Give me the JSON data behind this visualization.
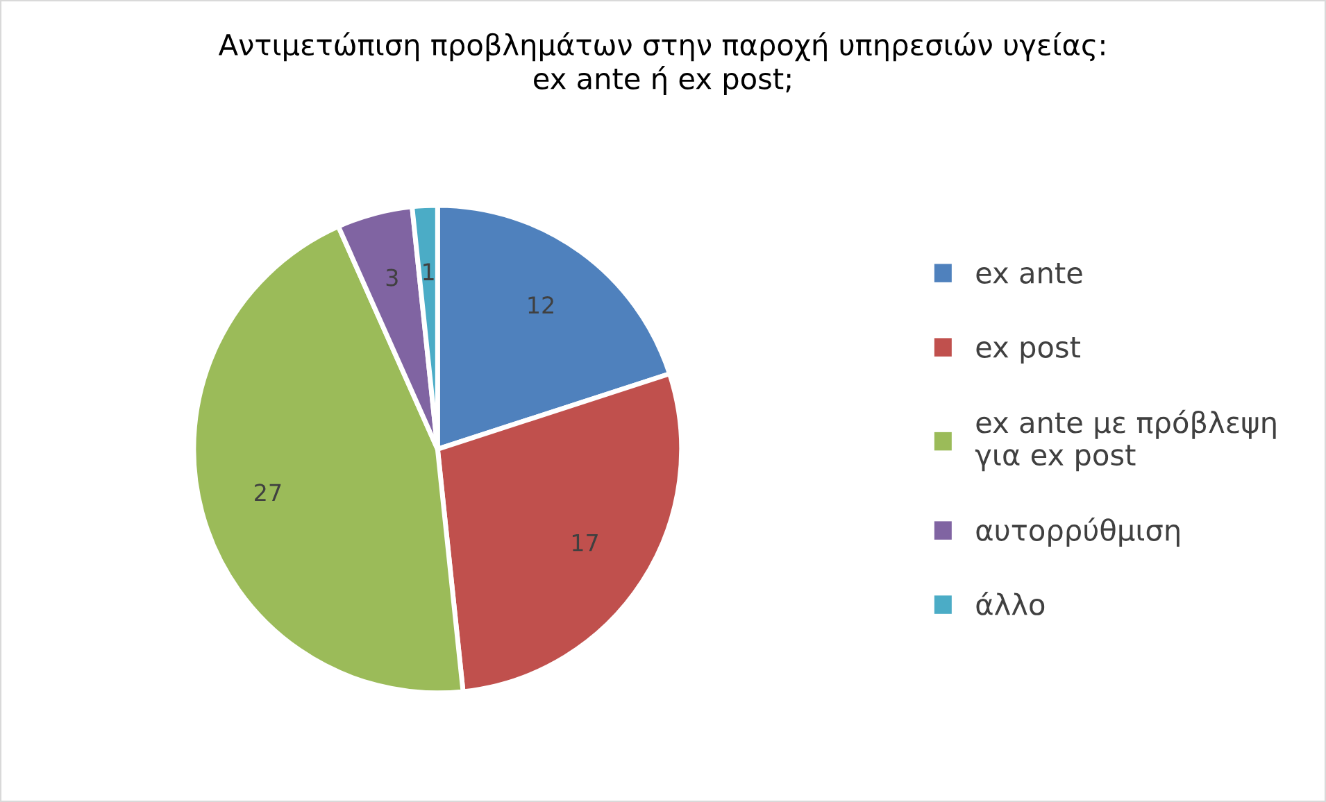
{
  "chart_data": {
    "type": "pie",
    "title": "Αντιμετώπιση προβλημάτων στην παροχή υπηρεσιών υγείας:\nex ante ή ex post;",
    "categories": [
      "ex ante",
      "ex post",
      "ex ante με πρόβλεψη\nγια ex post",
      "αυτορρύθμιση",
      "άλλο"
    ],
    "values": [
      12,
      17,
      27,
      3,
      1
    ],
    "colors": [
      "#4f81bd",
      "#c0504d",
      "#9bbb59",
      "#8064a2",
      "#4bacc6"
    ],
    "data_labels": true,
    "legend": "right"
  }
}
